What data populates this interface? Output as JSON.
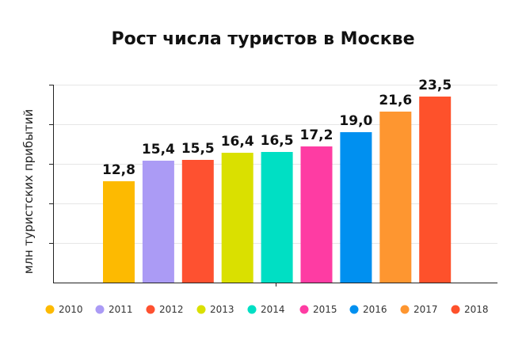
{
  "chart_data": {
    "type": "bar",
    "title": "Рост числа туристов в Москве",
    "ylabel": "млн туристских прибытий",
    "xlabel": "",
    "ylim": [
      0,
      25
    ],
    "grid": true,
    "legend_position": "bottom",
    "categories": [
      "2010",
      "2011",
      "2012",
      "2013",
      "2014",
      "2015",
      "2016",
      "2017",
      "2018"
    ],
    "values": [
      12.8,
      15.4,
      15.5,
      16.4,
      16.5,
      17.2,
      19.0,
      21.6,
      23.5
    ],
    "value_labels": [
      "12,8",
      "15,4",
      "15,5",
      "16,4",
      "16,5",
      "17,2",
      "19,0",
      "21,6",
      "23,5"
    ],
    "colors": [
      "#FDBA01",
      "#AB9BF5",
      "#FE5130",
      "#DAE000",
      "#00DFC4",
      "#FE3CA3",
      "#0090F0",
      "#FE9630",
      "#FE512B"
    ]
  }
}
